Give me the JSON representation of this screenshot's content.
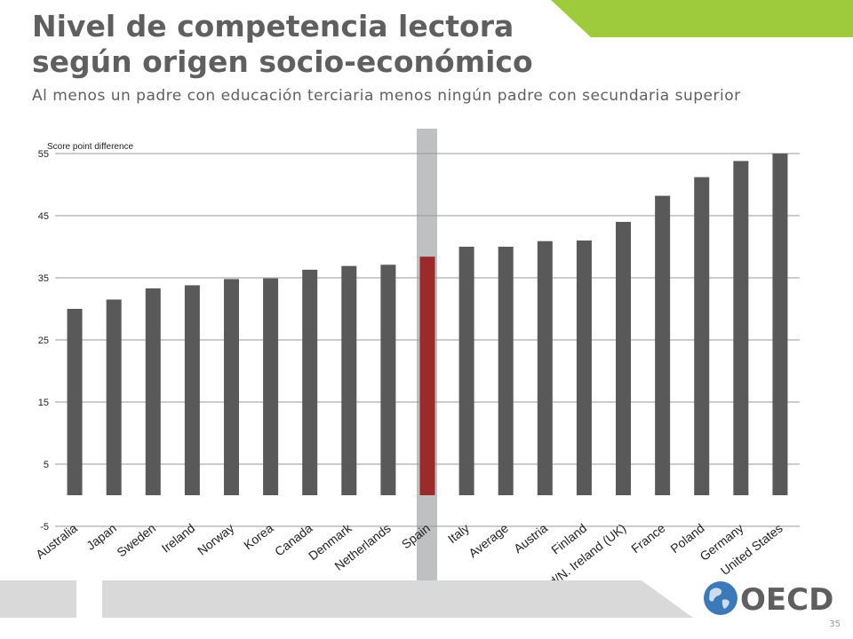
{
  "slide": {
    "title_line1": "Nivel de competencia lectora",
    "title_line2": "según origen socio-económico",
    "subtitle": "Al menos un padre con educación terciaria menos ningún padre con secundaria superior",
    "page_number": "35",
    "logo_text": "OECD"
  },
  "colors": {
    "banner": "#9dcb3c",
    "bar": "#595959",
    "highlight_bar": "#9b2a2a",
    "highlight_band": "#bfc0c2",
    "footer_band": "#d9d9d9",
    "title": "#5f5f5f",
    "logo_text": "#5f5f5f",
    "globe": "#3b79b8"
  },
  "chart_data": {
    "type": "bar",
    "ylabel": "Score point difference",
    "ylim": [
      -5,
      55
    ],
    "yticks": [
      -5,
      5,
      15,
      25,
      35,
      45,
      55
    ],
    "grid": true,
    "highlight": "Spain",
    "categories": [
      "Australia",
      "Japan",
      "Sweden",
      "Ireland",
      "Norway",
      "Korea",
      "Canada",
      "Denmark",
      "Netherlands",
      "Spain",
      "Italy",
      "Average",
      "Austria",
      "Finland",
      "England/N. Ireland (UK)",
      "France",
      "Poland",
      "Germany",
      "United States"
    ],
    "values": [
      30,
      31.5,
      33.3,
      33.8,
      34.8,
      34.9,
      36.3,
      36.9,
      37.1,
      38.4,
      40,
      40,
      40.9,
      41,
      44,
      48.2,
      51.2,
      53.8,
      55
    ]
  }
}
